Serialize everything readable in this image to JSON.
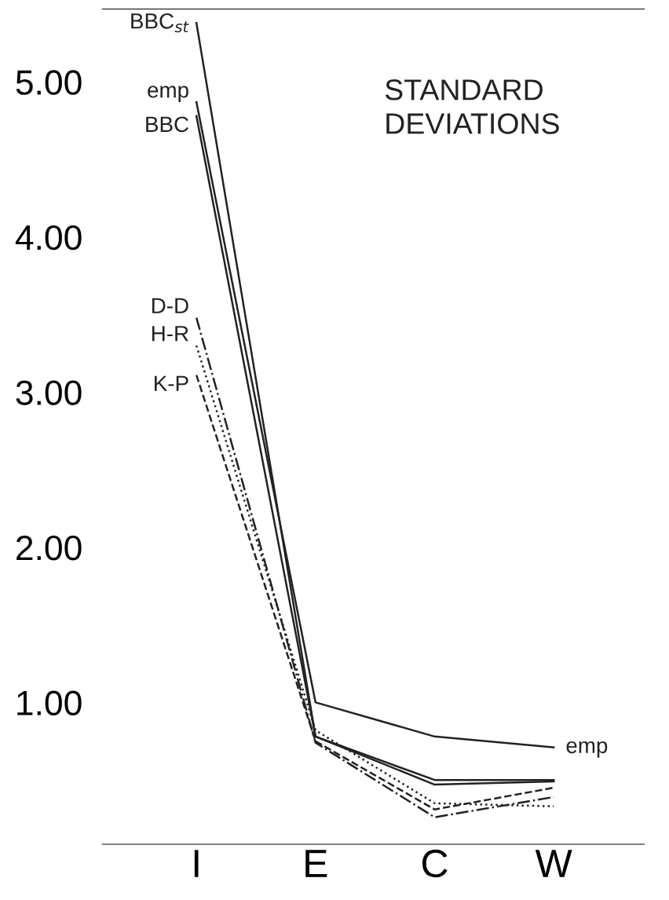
{
  "chart_data": {
    "type": "line",
    "title": "STANDARD\nDEVIATIONS",
    "categories": [
      "I",
      "E",
      "C",
      "W"
    ],
    "series": [
      {
        "name": "BBC$_{st}$",
        "color": "#222222",
        "line_style": "solid",
        "values": [
          5.38,
          0.78,
          0.47,
          0.49
        ]
      },
      {
        "name": "emp",
        "color": "#222222",
        "line_style": "solid",
        "values": [
          4.87,
          1.0,
          0.78,
          0.71
        ]
      },
      {
        "name": "BBC",
        "color": "#222222",
        "line_style": "solid",
        "values": [
          4.78,
          0.78,
          0.5,
          0.5
        ]
      },
      {
        "name": "D-D",
        "color": "#222222",
        "line_style": "dashdot",
        "values": [
          3.48,
          0.74,
          0.26,
          0.39
        ]
      },
      {
        "name": "H-R",
        "color": "#222222",
        "line_style": "dotted",
        "values": [
          3.3,
          0.82,
          0.35,
          0.33
        ]
      },
      {
        "name": "K-P",
        "color": "#222222",
        "line_style": "dashed",
        "values": [
          3.11,
          0.75,
          0.31,
          0.45
        ]
      }
    ],
    "annotations": [
      {
        "text": "emp",
        "x": "W",
        "y": 0.71
      }
    ],
    "ylim": [
      0.086,
      5.47
    ],
    "yticks": [
      {
        "value": 1,
        "label": "1.00"
      },
      {
        "value": 2,
        "label": "2.00"
      },
      {
        "value": 3,
        "label": "3.00"
      },
      {
        "value": 4,
        "label": "4.00"
      },
      {
        "value": 5,
        "label": "5.00"
      }
    ],
    "grid": false,
    "legend": false,
    "marker": "none"
  }
}
